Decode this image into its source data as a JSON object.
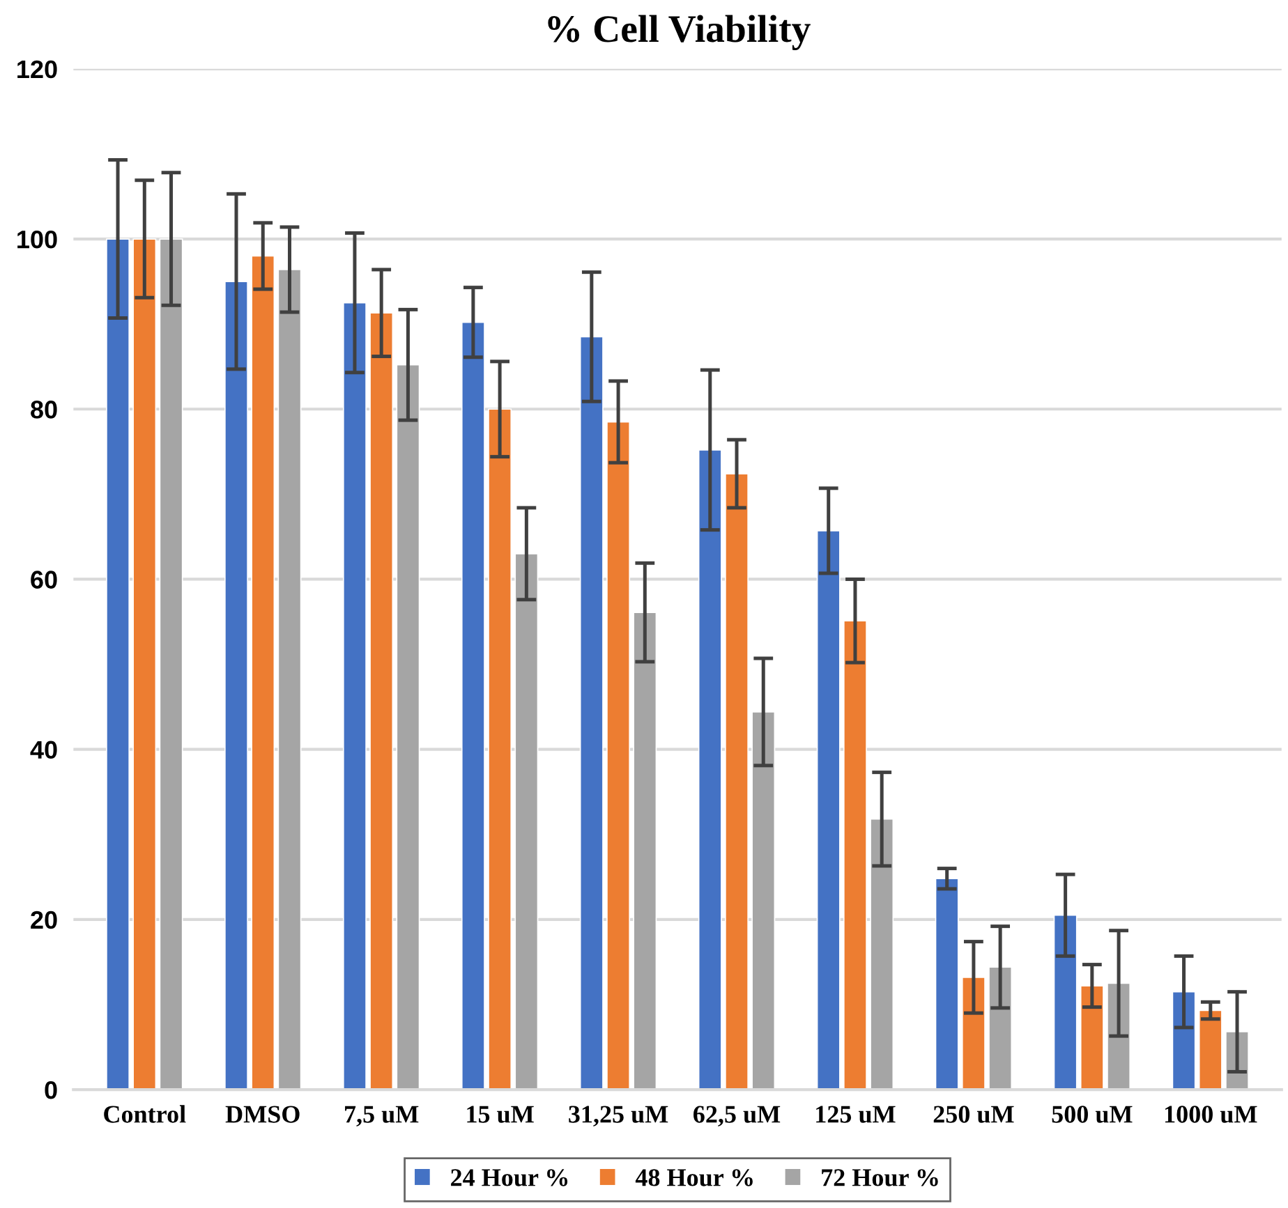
{
  "chart_data": {
    "type": "bar",
    "title": "% Cell Viability",
    "categories": [
      "Control",
      "DMSO",
      "7,5 uM",
      "15 uM",
      "31,25 uM",
      "62,5 uM",
      "125 uM",
      "250 uM",
      "500 uM",
      "1000 uM"
    ],
    "series": [
      {
        "name": "24 Hour %",
        "color": "#4472c4",
        "values": [
          100,
          95.0,
          92.5,
          90.2,
          88.5,
          75.2,
          65.7,
          24.8,
          20.5,
          11.5
        ],
        "errors": [
          9.3,
          10.3,
          8.2,
          4.1,
          7.6,
          9.4,
          5.0,
          1.2,
          4.8,
          4.2
        ]
      },
      {
        "name": "48 Hour %",
        "color": "#ed7d31",
        "values": [
          100,
          98.0,
          91.3,
          80.0,
          78.5,
          72.4,
          55.1,
          13.2,
          12.2,
          9.3
        ],
        "errors": [
          6.9,
          3.9,
          5.1,
          5.6,
          4.8,
          4.0,
          4.9,
          4.2,
          2.5,
          1.0
        ]
      },
      {
        "name": "72 Hour %",
        "color": "#a5a5a5",
        "values": [
          100,
          96.4,
          85.2,
          63.0,
          56.1,
          44.4,
          31.8,
          14.4,
          12.5,
          6.8
        ],
        "errors": [
          7.8,
          5.0,
          6.5,
          5.4,
          5.8,
          6.3,
          5.5,
          4.8,
          6.2,
          4.7
        ]
      }
    ],
    "ylim": [
      0,
      120
    ],
    "yticks": [
      0,
      20,
      40,
      60,
      80,
      100,
      120
    ],
    "grid": "y",
    "legend": "bottom"
  }
}
